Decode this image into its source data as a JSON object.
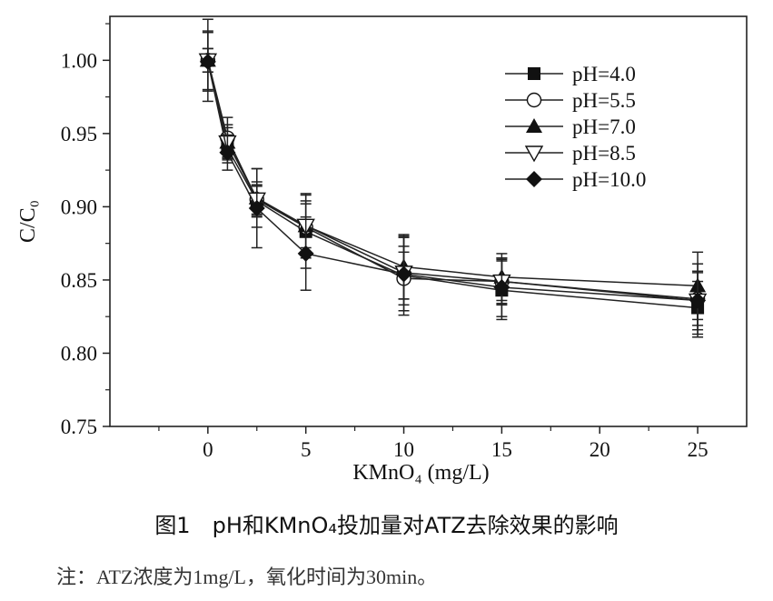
{
  "chart_data": {
    "type": "line",
    "title": "",
    "xlabel": "KMnO₄ (mg/L)",
    "ylabel": "C/C₀",
    "xlim": [
      -5,
      27.5
    ],
    "ylim": [
      0.75,
      1.03
    ],
    "x": [
      0,
      1,
      2.5,
      5,
      10,
      15,
      25
    ],
    "x_ticks": [
      "0",
      "5",
      "10",
      "15",
      "20",
      "25"
    ],
    "x_tick_values": [
      0,
      5,
      10,
      15,
      20,
      25
    ],
    "y_ticks": [
      "0.75",
      "0.80",
      "0.85",
      "0.90",
      "0.95",
      "1.00"
    ],
    "y_tick_values": [
      0.75,
      0.8,
      0.85,
      0.9,
      0.95,
      1.0
    ],
    "grid": false,
    "legend_position": "top-right",
    "series": [
      {
        "name": "pH=4.0",
        "marker": "square",
        "values": [
          1.0,
          0.94,
          0.904,
          0.883,
          0.853,
          0.843,
          0.831
        ],
        "errors": [
          0.008,
          0.01,
          0.01,
          0.025,
          0.027,
          0.02,
          0.018
        ]
      },
      {
        "name": "pH=5.5",
        "marker": "circle",
        "values": [
          1.0,
          0.947,
          0.905,
          0.886,
          0.851,
          0.849,
          0.837
        ],
        "errors": [
          0.028,
          0.014,
          0.012,
          0.018,
          0.018,
          0.016,
          0.018
        ]
      },
      {
        "name": "pH=7.0",
        "marker": "triangle-up",
        "values": [
          1.0,
          0.944,
          0.906,
          0.887,
          0.859,
          0.852,
          0.846
        ],
        "errors": [
          0.008,
          0.01,
          0.02,
          0.022,
          0.022,
          0.016,
          0.023
        ]
      },
      {
        "name": "pH=8.5",
        "marker": "triangle-down",
        "values": [
          1.0,
          0.944,
          0.905,
          0.887,
          0.855,
          0.849,
          0.836
        ],
        "errors": [
          0.02,
          0.012,
          0.01,
          0.015,
          0.018,
          0.015,
          0.02
        ]
      },
      {
        "name": "pH=10.0",
        "marker": "diamond",
        "values": [
          0.999,
          0.937,
          0.899,
          0.868,
          0.854,
          0.845,
          0.836
        ],
        "errors": [
          0.02,
          0.012,
          0.027,
          0.025,
          0.025,
          0.02,
          0.025
        ]
      }
    ]
  },
  "caption": "图1　pH和KMnO₄投加量对ATZ去除效果的影响",
  "note": "注：ATZ浓度为1mg/L，氧化时间为30min。"
}
